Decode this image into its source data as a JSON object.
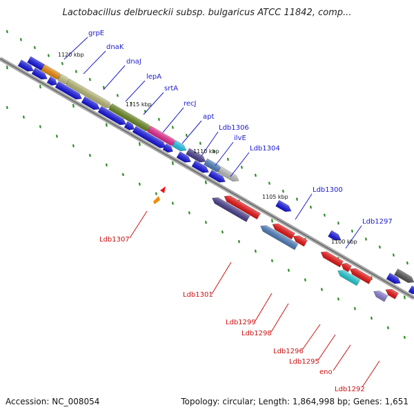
{
  "title": "Lactobacillus delbrueckii subsp. bulgaricus ATCC 11842, comp...",
  "footer": {
    "accession": "Accession: NC_008054",
    "summary": "Topology: circular; Length: 1,864,998 bp; Genes: 1,651"
  },
  "colors": {
    "backbone": "#888888",
    "tick": "#2a8a22",
    "forward_label": "#1a1acc",
    "reverse_label": "#cc1010"
  },
  "scale_labels": [
    "1120 kbp",
    "1115 kbp",
    "1110 kbp",
    "1105 kbp",
    "1100 kbp"
  ],
  "forward_gene_labels": [
    "grpE",
    "dnaK",
    "dnaJ",
    "lepA",
    "srtA",
    "recJ",
    "apt",
    "Ldb1306",
    "ilvE",
    "Ldb1304",
    "Ldb1300",
    "Ldb1297"
  ],
  "reverse_gene_labels": [
    "Ldb1307",
    "Ldb1301",
    "Ldb1299",
    "Ldb1298",
    "Ldb1296",
    "Ldb1295",
    "eno",
    "Ldb1292"
  ]
}
